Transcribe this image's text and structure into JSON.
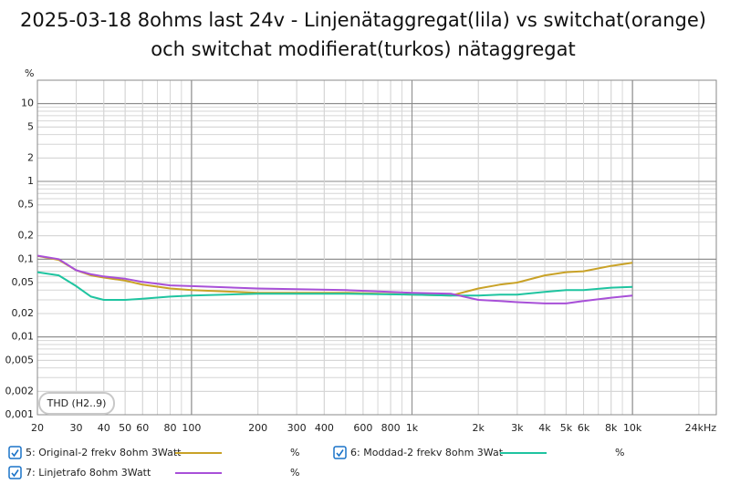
{
  "chart_data": {
    "type": "line",
    "title": [
      "2025-03-18 8ohms last 24v - Linjenätaggregat(lila) vs switchat(orange)",
      "och switchat modifierat(turkos) nätaggregat"
    ],
    "y_label": "%",
    "annotation": "THD (H2..9)",
    "log_x": true,
    "log_y": true,
    "grid": true,
    "xlim": [
      20,
      24000
    ],
    "ylim": [
      0.001,
      20
    ],
    "xticks": [
      20,
      30,
      40,
      50,
      60,
      80,
      100,
      200,
      300,
      400,
      600,
      800,
      {
        "value": 1000,
        "label": "1k"
      },
      {
        "value": 2000,
        "label": "2k"
      },
      {
        "value": 3000,
        "label": "3k"
      },
      {
        "value": 4000,
        "label": "4k"
      },
      {
        "value": 5000,
        "label": "5k"
      },
      {
        "value": 6000,
        "label": "6k"
      },
      {
        "value": 8000,
        "label": "8k"
      },
      {
        "value": 10000,
        "label": "10k"
      },
      {
        "value": 24000,
        "label": "24kHz"
      }
    ],
    "yticks": [
      10,
      5,
      2,
      1,
      {
        "value": 0.5,
        "label": "0,5"
      },
      {
        "value": 0.2,
        "label": "0,2"
      },
      {
        "value": 0.1,
        "label": "0,1"
      },
      {
        "value": 0.05,
        "label": "0,05"
      },
      {
        "value": 0.02,
        "label": "0,02"
      },
      {
        "value": 0.01,
        "label": "0,01"
      },
      {
        "value": 0.005,
        "label": "0,005"
      },
      {
        "value": 0.002,
        "label": "0,002"
      },
      {
        "value": 0.001,
        "label": "0,001"
      }
    ],
    "x": [
      20,
      25,
      30,
      35,
      40,
      50,
      60,
      80,
      100,
      200,
      500,
      1000,
      1500,
      2000,
      2500,
      3000,
      4000,
      5000,
      6000,
      8000,
      10000
    ],
    "series": [
      {
        "name": "5: Original-2 frekv 8ohm 3Watt",
        "unit": "%",
        "color": "#c9a227",
        "values": [
          0.11,
          0.098,
          0.072,
          0.062,
          0.058,
          0.053,
          0.047,
          0.042,
          0.04,
          0.037,
          0.037,
          0.035,
          0.034,
          0.042,
          0.047,
          0.05,
          0.062,
          0.068,
          0.07,
          0.082,
          0.09
        ]
      },
      {
        "name": "6: Moddad-2 frekv 8ohm 3Wat",
        "unit": "%",
        "color": "#1fc4a0",
        "values": [
          0.068,
          0.062,
          0.045,
          0.033,
          0.03,
          0.03,
          0.031,
          0.033,
          0.034,
          0.036,
          0.036,
          0.035,
          0.034,
          0.034,
          0.035,
          0.035,
          0.038,
          0.04,
          0.04,
          0.043,
          0.044
        ]
      },
      {
        "name": "7: Linjetrafo 8ohm 3Watt",
        "unit": "%",
        "color": "#a850d8",
        "values": [
          0.111,
          0.1,
          0.072,
          0.064,
          0.06,
          0.056,
          0.051,
          0.046,
          0.045,
          0.042,
          0.04,
          0.037,
          0.036,
          0.03,
          0.029,
          0.028,
          0.027,
          0.027,
          0.029,
          0.032,
          0.034
        ]
      }
    ]
  }
}
